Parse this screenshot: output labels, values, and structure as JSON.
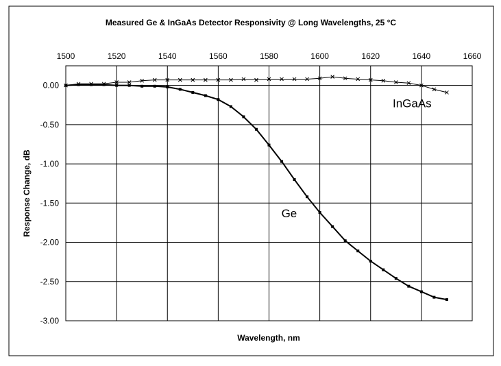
{
  "chart_data": {
    "type": "line",
    "title": "Measured Ge & InGaAs Detector Responsivity @ Long Wavelengths, 25 °C",
    "xlabel": "Wavelength, nm",
    "ylabel": "Response Change, dB",
    "xlim": [
      1500,
      1660
    ],
    "ylim": [
      -3.0,
      0.25
    ],
    "x_ticks": [
      1500,
      1520,
      1540,
      1560,
      1580,
      1600,
      1620,
      1640,
      1660
    ],
    "x_tick_labels": [
      "1500",
      "1520",
      "1540",
      "1560",
      "1580",
      "1600",
      "1620",
      "1640",
      "1660"
    ],
    "y_ticks": [
      0,
      -0.5,
      -1.0,
      -1.5,
      -2.0,
      -2.5,
      -3.0
    ],
    "y_tick_labels": [
      "0.00",
      "-0.50",
      "-1.00",
      "-1.50",
      "-2.00",
      "-2.50",
      "-3.00"
    ],
    "x_axis_position": "top",
    "grid": true,
    "series": [
      {
        "name": "Ge",
        "marker": "square",
        "color": "#000000",
        "x": [
          1500,
          1505,
          1510,
          1515,
          1520,
          1525,
          1530,
          1535,
          1540,
          1545,
          1550,
          1555,
          1560,
          1565,
          1570,
          1575,
          1580,
          1585,
          1590,
          1595,
          1600,
          1605,
          1610,
          1615,
          1620,
          1625,
          1630,
          1635,
          1640,
          1645,
          1650
        ],
        "y": [
          0.0,
          0.01,
          0.01,
          0.01,
          0.0,
          0.0,
          -0.01,
          -0.01,
          -0.02,
          -0.05,
          -0.09,
          -0.13,
          -0.18,
          -0.27,
          -0.4,
          -0.56,
          -0.76,
          -0.97,
          -1.2,
          -1.42,
          -1.62,
          -1.8,
          -1.98,
          -2.11,
          -2.24,
          -2.35,
          -2.46,
          -2.56,
          -2.63,
          -2.7,
          -2.73
        ]
      },
      {
        "name": "InGaAs",
        "marker": "x",
        "color": "#000000",
        "x": [
          1500,
          1505,
          1510,
          1515,
          1520,
          1525,
          1530,
          1535,
          1540,
          1545,
          1550,
          1555,
          1560,
          1565,
          1570,
          1575,
          1580,
          1585,
          1590,
          1595,
          1600,
          1605,
          1610,
          1615,
          1620,
          1625,
          1630,
          1635,
          1640,
          1645,
          1650
        ],
        "y": [
          0.0,
          0.02,
          0.02,
          0.02,
          0.04,
          0.04,
          0.06,
          0.07,
          0.07,
          0.07,
          0.07,
          0.07,
          0.07,
          0.07,
          0.08,
          0.07,
          0.08,
          0.08,
          0.08,
          0.08,
          0.09,
          0.11,
          0.09,
          0.08,
          0.07,
          0.06,
          0.04,
          0.03,
          0.0,
          -0.05,
          -0.09
        ]
      }
    ],
    "annotations": [
      {
        "text": "InGaAs",
        "x": 1644,
        "y": -0.28
      },
      {
        "text": "Ge",
        "x": 1591,
        "y": -1.68
      }
    ]
  }
}
